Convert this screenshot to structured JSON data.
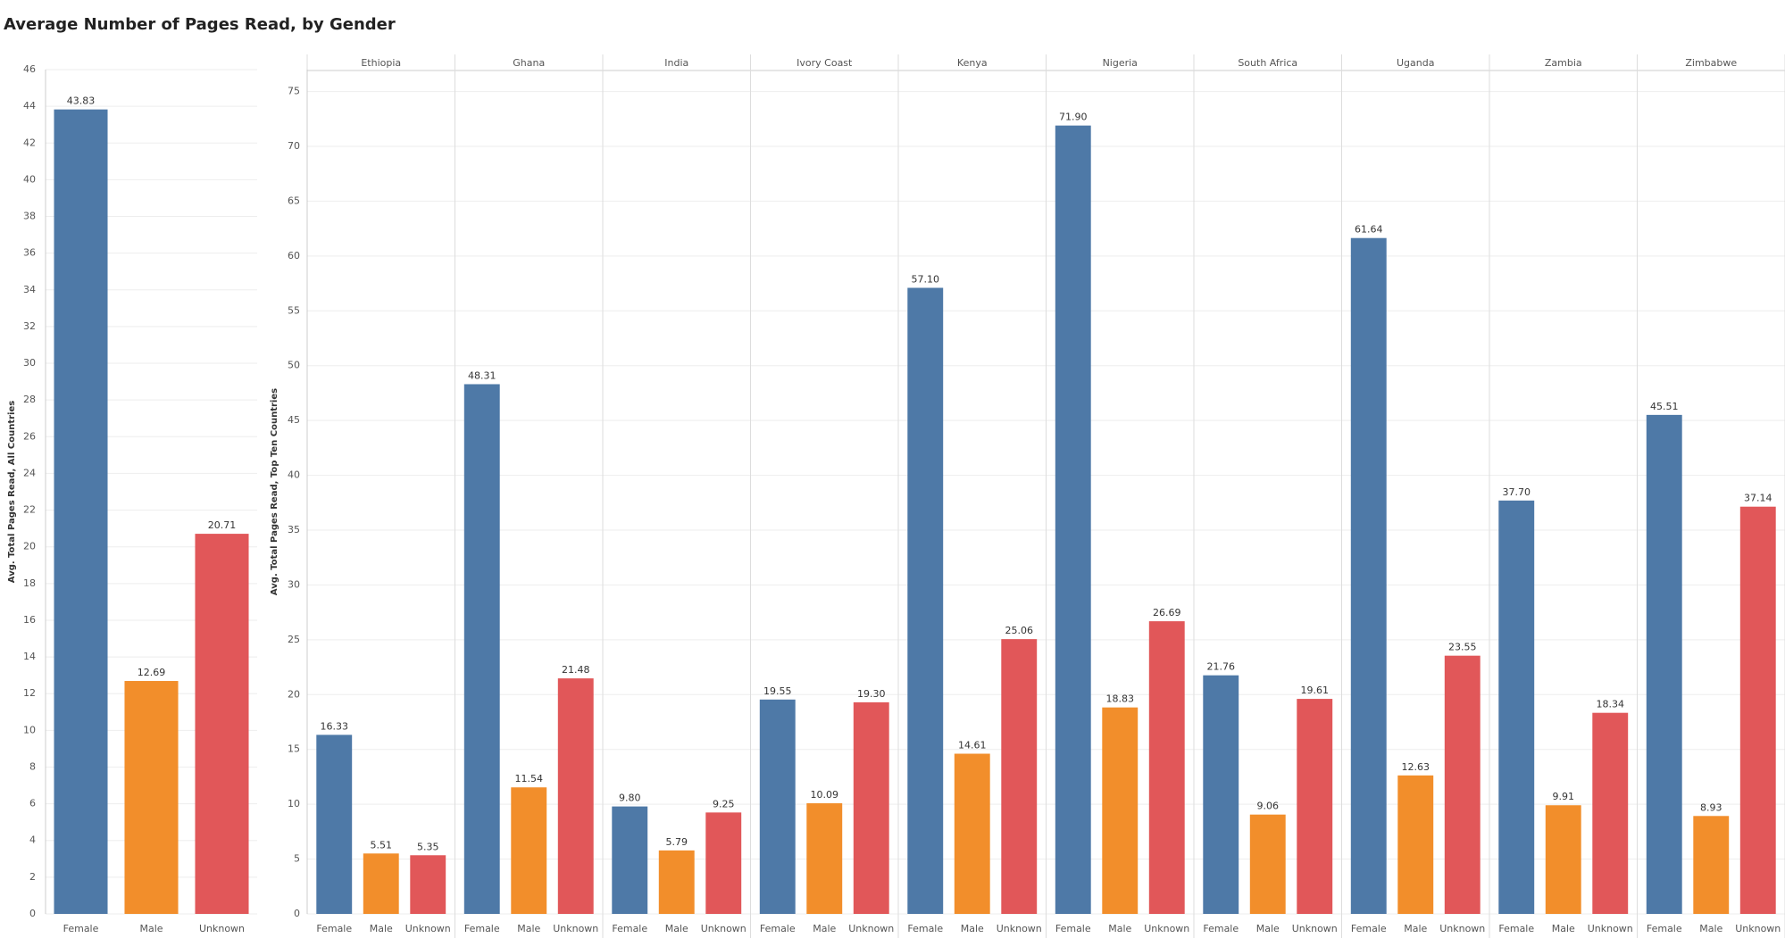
{
  "title": "Average Number of Pages Read, by Gender",
  "chart_data": [
    {
      "type": "bar",
      "y_label": "Avg. Total Pages Read, All Countries",
      "categories": [
        "Female",
        "Male",
        "Unknown"
      ],
      "colors": [
        "#4e79a7",
        "#f28e2b",
        "#e15759"
      ],
      "values": [
        43.83,
        12.69,
        20.71
      ],
      "value_labels": [
        "43.83",
        "12.69",
        "20.71"
      ],
      "ylim": [
        0,
        46
      ],
      "yticks": [
        0,
        2,
        4,
        6,
        8,
        10,
        12,
        14,
        16,
        18,
        20,
        22,
        24,
        26,
        28,
        30,
        32,
        34,
        36,
        38,
        40,
        42,
        44,
        46
      ],
      "grid": true
    },
    {
      "type": "faceted-bar",
      "y_label": "Avg. Total Pages Read, Top Ten Countries",
      "categories": [
        "Female",
        "Male",
        "Unknown"
      ],
      "colors": [
        "#4e79a7",
        "#f28e2b",
        "#e15759"
      ],
      "facets": [
        {
          "name": "Ethiopia",
          "values": [
            16.33,
            5.51,
            5.35
          ],
          "value_labels": [
            "16.33",
            "5.51",
            "5.35"
          ]
        },
        {
          "name": "Ghana",
          "values": [
            48.31,
            11.54,
            21.48
          ],
          "value_labels": [
            "48.31",
            "11.54",
            "21.48"
          ]
        },
        {
          "name": "India",
          "values": [
            9.8,
            5.79,
            9.25
          ],
          "value_labels": [
            "9.80",
            "5.79",
            "9.25"
          ]
        },
        {
          "name": "Ivory Coast",
          "values": [
            19.55,
            10.09,
            19.3
          ],
          "value_labels": [
            "19.55",
            "10.09",
            "19.30"
          ]
        },
        {
          "name": "Kenya",
          "values": [
            57.1,
            14.61,
            25.06
          ],
          "value_labels": [
            "57.10",
            "14.61",
            "25.06"
          ]
        },
        {
          "name": "Nigeria",
          "values": [
            71.9,
            18.83,
            26.69
          ],
          "value_labels": [
            "71.90",
            "18.83",
            "26.69"
          ]
        },
        {
          "name": "South Africa",
          "values": [
            21.76,
            9.06,
            19.61
          ],
          "value_labels": [
            "21.76",
            "9.06",
            "19.61"
          ]
        },
        {
          "name": "Uganda",
          "values": [
            61.64,
            12.63,
            23.55
          ],
          "value_labels": [
            "61.64",
            "12.63",
            "23.55"
          ]
        },
        {
          "name": "Zambia",
          "values": [
            37.7,
            9.91,
            18.34
          ],
          "value_labels": [
            "37.70",
            "9.91",
            "18.34"
          ]
        },
        {
          "name": "Zimbabwe",
          "values": [
            45.51,
            8.93,
            37.14
          ],
          "value_labels": [
            "45.51",
            "8.93",
            "37.14"
          ]
        }
      ],
      "ylim": [
        0,
        77
      ],
      "yticks": [
        0,
        5,
        10,
        15,
        20,
        25,
        30,
        35,
        40,
        45,
        50,
        55,
        60,
        65,
        70,
        75
      ],
      "grid": true
    }
  ]
}
